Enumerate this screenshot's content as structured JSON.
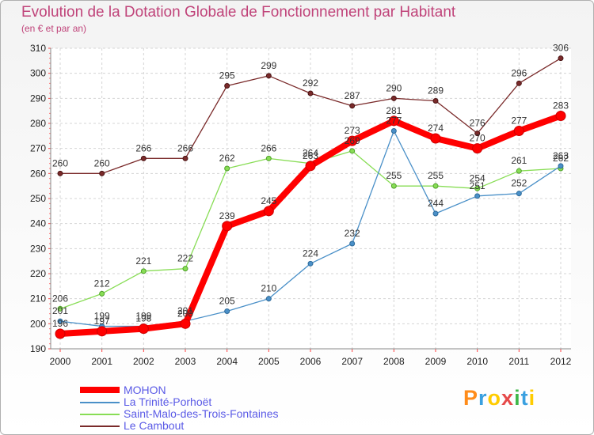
{
  "header": {
    "title": "Evolution de la Dotation Globale de Fonctionnement par Habitant",
    "subtitle": "(en € et par an)"
  },
  "brand": {
    "text": "Proxiti",
    "letter_colors": [
      "#ff8c1a",
      "#3aa0e0",
      "#ffcc00",
      "#e64a4a",
      "#40b84a",
      "#3aa0e0",
      "#ffcc00"
    ]
  },
  "chart_data": {
    "type": "line",
    "title": "Evolution de la Dotation Globale de Fonctionnement par Habitant",
    "subtitle": "(en € et par an)",
    "xlabel": "",
    "ylabel": "",
    "x": [
      "2000",
      "2001",
      "2002",
      "2003",
      "2004",
      "2005",
      "2006",
      "2007",
      "2008",
      "2009",
      "2010",
      "2011",
      "2012"
    ],
    "ylim": [
      190,
      310
    ],
    "yticks": [
      190,
      200,
      210,
      220,
      230,
      240,
      250,
      260,
      270,
      280,
      290,
      300,
      310
    ],
    "grid": true,
    "legend_position": "bottom-left",
    "series": [
      {
        "name": "MOHON",
        "color": "#ff0000",
        "values": [
          196,
          197,
          198,
          200,
          239,
          245,
          263,
          273,
          281,
          274,
          270,
          277,
          283
        ],
        "labels": [
          "196",
          "197",
          "198",
          "200",
          "239",
          "245",
          "263",
          "273",
          "281",
          "274",
          "270",
          "277",
          "283"
        ]
      },
      {
        "name": "La Trinité-Porhoët",
        "color": "#4a90c8",
        "values": [
          201,
          199,
          199,
          201,
          205,
          210,
          224,
          232,
          277,
          244,
          251,
          252,
          263
        ],
        "labels": [
          "201",
          "199",
          "199",
          "201",
          "205",
          "210",
          "224",
          "232",
          "277",
          "244",
          "251",
          "252",
          "263"
        ]
      },
      {
        "name": "Saint-Malo-des-Trois-Fontaines",
        "color": "#88dd55",
        "values": [
          206,
          212,
          221,
          222,
          262,
          266,
          264,
          269,
          255,
          255,
          254,
          261,
          262
        ],
        "labels": [
          "206",
          "212",
          "221",
          "222",
          "262",
          "266",
          "264",
          "269",
          "255",
          "255",
          "254",
          "261",
          "262"
        ]
      },
      {
        "name": "Le Cambout",
        "color": "#7a2a2a",
        "values": [
          260,
          260,
          266,
          266,
          295,
          299,
          292,
          287,
          290,
          289,
          276,
          296,
          306
        ],
        "labels": [
          "260",
          "260",
          "266",
          "266",
          "295",
          "299",
          "292",
          "287",
          "290",
          "289",
          "276",
          "296",
          "306"
        ]
      }
    ]
  }
}
